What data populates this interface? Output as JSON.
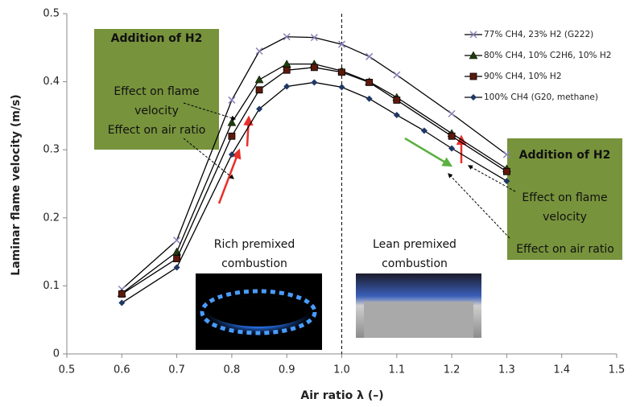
{
  "chart_data": {
    "type": "line",
    "xlabel": "Air ratio λ (–)",
    "ylabel": "Laminar flame velocity (m/s)",
    "xlim": [
      0.5,
      1.5
    ],
    "xticks": [
      0.5,
      0.6,
      0.7,
      0.8,
      0.9,
      {
        "value": 1,
        "label": "1.0"
      },
      1.1,
      1.2,
      1.3,
      1.4,
      1.5
    ],
    "ylim": [
      0,
      0.5
    ],
    "yticks": [
      0,
      0.1,
      0.2,
      0.3,
      0.4,
      0.5
    ],
    "vline": 1,
    "legend": "upper right",
    "series": [
      {
        "name": "77% CH4, 23% H2 (G222)",
        "color": "#8a80b8",
        "marker": "x",
        "x": [
          0.6,
          0.7,
          0.8,
          0.85,
          0.9,
          0.95,
          1.0,
          1.05,
          1.1,
          1.2,
          1.3
        ],
        "values": [
          0.095,
          0.167,
          0.373,
          0.445,
          0.466,
          0.465,
          0.455,
          0.437,
          0.41,
          0.353,
          0.293
        ]
      },
      {
        "name": "80% CH4, 10% C2H6, 10% H2",
        "color": "#1e3d0c",
        "marker": "triangle",
        "x": [
          0.6,
          0.7,
          0.8,
          0.85,
          0.9,
          0.95,
          1.0,
          1.05,
          1.1,
          1.2,
          1.3
        ],
        "values": [
          0.089,
          0.15,
          0.34,
          0.403,
          0.426,
          0.426,
          0.416,
          0.4,
          0.377,
          0.324,
          0.272
        ]
      },
      {
        "name": "90% CH4, 10% H2",
        "color": "#5c1a0c",
        "marker": "square",
        "x": [
          0.6,
          0.7,
          0.8,
          0.85,
          0.9,
          0.95,
          1.0,
          1.05,
          1.1,
          1.2,
          1.3
        ],
        "values": [
          0.088,
          0.14,
          0.32,
          0.388,
          0.417,
          0.421,
          0.414,
          0.399,
          0.373,
          0.32,
          0.268
        ]
      },
      {
        "name": "100% CH4 (G20, methane)",
        "color": "#1f3864",
        "marker": "diamond",
        "x": [
          0.6,
          0.7,
          0.8,
          0.85,
          0.9,
          0.95,
          1.0,
          1.05,
          1.1,
          1.15,
          1.2,
          1.3
        ],
        "values": [
          0.075,
          0.127,
          0.293,
          0.36,
          0.393,
          0.399,
          0.392,
          0.375,
          0.351,
          0.328,
          0.302,
          0.254
        ]
      }
    ],
    "annotations": {
      "rich_box": {
        "title": "Addition of H2",
        "flame": "Effect on flame velocity",
        "air": "Effect on air ratio"
      },
      "lean_box": {
        "title": "Addition of H2",
        "flame": "Effect on flame velocity",
        "air": "Effect on air ratio"
      },
      "rich_label": "Rich premixed combustion",
      "lean_label": "Lean premixed combustion"
    }
  }
}
